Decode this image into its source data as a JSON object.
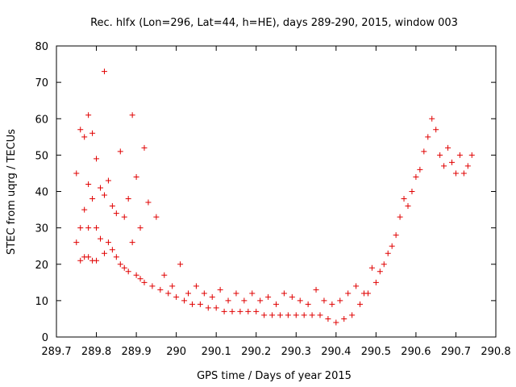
{
  "chart_data": {
    "type": "scatter",
    "title": "Rec. hlfx (Lon=296, Lat=44, h=HE), days 289-290, 2015, window 003",
    "xlabel": "GPS time / Days of year 2015",
    "ylabel": "STEC from uqrg / TECUs",
    "xlim": [
      289.7,
      290.8
    ],
    "ylim": [
      0,
      80
    ],
    "xticks": [
      289.7,
      289.8,
      289.9,
      290,
      290.1,
      290.2,
      290.3,
      290.4,
      290.5,
      290.6,
      290.7,
      290.8
    ],
    "xtick_labels": [
      "289.7",
      "289.8",
      "289.9",
      "290",
      "290.1",
      "290.2",
      "290.3",
      "290.4",
      "290.5",
      "290.6",
      "290.7",
      "290.8"
    ],
    "yticks": [
      0,
      10,
      20,
      30,
      40,
      50,
      60,
      70,
      80
    ],
    "ytick_labels": [
      "0",
      "10",
      "20",
      "30",
      "40",
      "50",
      "60",
      "70",
      "80"
    ],
    "grid": false,
    "legend": "none",
    "marker": "+",
    "color": "#e00000",
    "series": [
      {
        "x": [
          289.75,
          289.75,
          289.76,
          289.76,
          289.76,
          289.77,
          289.77,
          289.77,
          289.78,
          289.78,
          289.78,
          289.78,
          289.79,
          289.79,
          289.79,
          289.8,
          289.8,
          289.8,
          289.81,
          289.81,
          289.82,
          289.82,
          289.82,
          289.83,
          289.83,
          289.84,
          289.84,
          289.85,
          289.85,
          289.86,
          289.86,
          289.87,
          289.87,
          289.88,
          289.88,
          289.89,
          289.89,
          289.9,
          289.9,
          289.91,
          289.91,
          289.92,
          289.92,
          289.93,
          289.94,
          289.95,
          289.96,
          289.97,
          289.98,
          289.99,
          290.0,
          290.01,
          290.02,
          290.03,
          290.04,
          290.05,
          290.06,
          290.07,
          290.08,
          290.09,
          290.1,
          290.11,
          290.12,
          290.13,
          290.14,
          290.15,
          290.16,
          290.17,
          290.18,
          290.19,
          290.2,
          290.21,
          290.22,
          290.23,
          290.24,
          290.25,
          290.26,
          290.27,
          290.28,
          290.29,
          290.3,
          290.31,
          290.32,
          290.33,
          290.34,
          290.35,
          290.36,
          290.37,
          290.38,
          290.39,
          290.4,
          290.41,
          290.42,
          290.43,
          290.44,
          290.45,
          290.46,
          290.47,
          290.48,
          290.49,
          290.5,
          290.51,
          290.52,
          290.53,
          290.54,
          290.55,
          290.56,
          290.57,
          290.58,
          290.59,
          290.6,
          290.61,
          290.62,
          290.63,
          290.64,
          290.65,
          290.66,
          290.67,
          290.68,
          290.69,
          290.7,
          290.71,
          290.72,
          290.73,
          290.74
        ],
        "y": [
          45,
          26,
          57,
          30,
          21,
          55,
          35,
          22,
          61,
          42,
          30,
          22,
          56,
          38,
          21,
          49,
          30,
          21,
          41,
          27,
          73,
          39,
          23,
          43,
          26,
          36,
          24,
          34,
          22,
          51,
          20,
          33,
          19,
          38,
          18,
          61,
          26,
          17,
          44,
          30,
          16,
          52,
          15,
          37,
          14,
          33,
          13,
          17,
          12,
          14,
          11,
          20,
          10,
          12,
          9,
          14,
          9,
          12,
          8,
          11,
          8,
          13,
          7,
          10,
          7,
          12,
          7,
          10,
          7,
          12,
          7,
          10,
          6,
          11,
          6,
          9,
          6,
          12,
          6,
          11,
          6,
          10,
          6,
          9,
          6,
          13,
          6,
          10,
          5,
          9,
          4,
          10,
          5,
          12,
          6,
          14,
          9,
          12,
          12,
          19,
          15,
          18,
          20,
          23,
          25,
          28,
          33,
          38,
          36,
          40,
          44,
          46,
          51,
          55,
          60,
          57,
          50,
          47,
          52,
          48,
          45,
          50,
          45,
          47,
          50
        ]
      }
    ]
  }
}
